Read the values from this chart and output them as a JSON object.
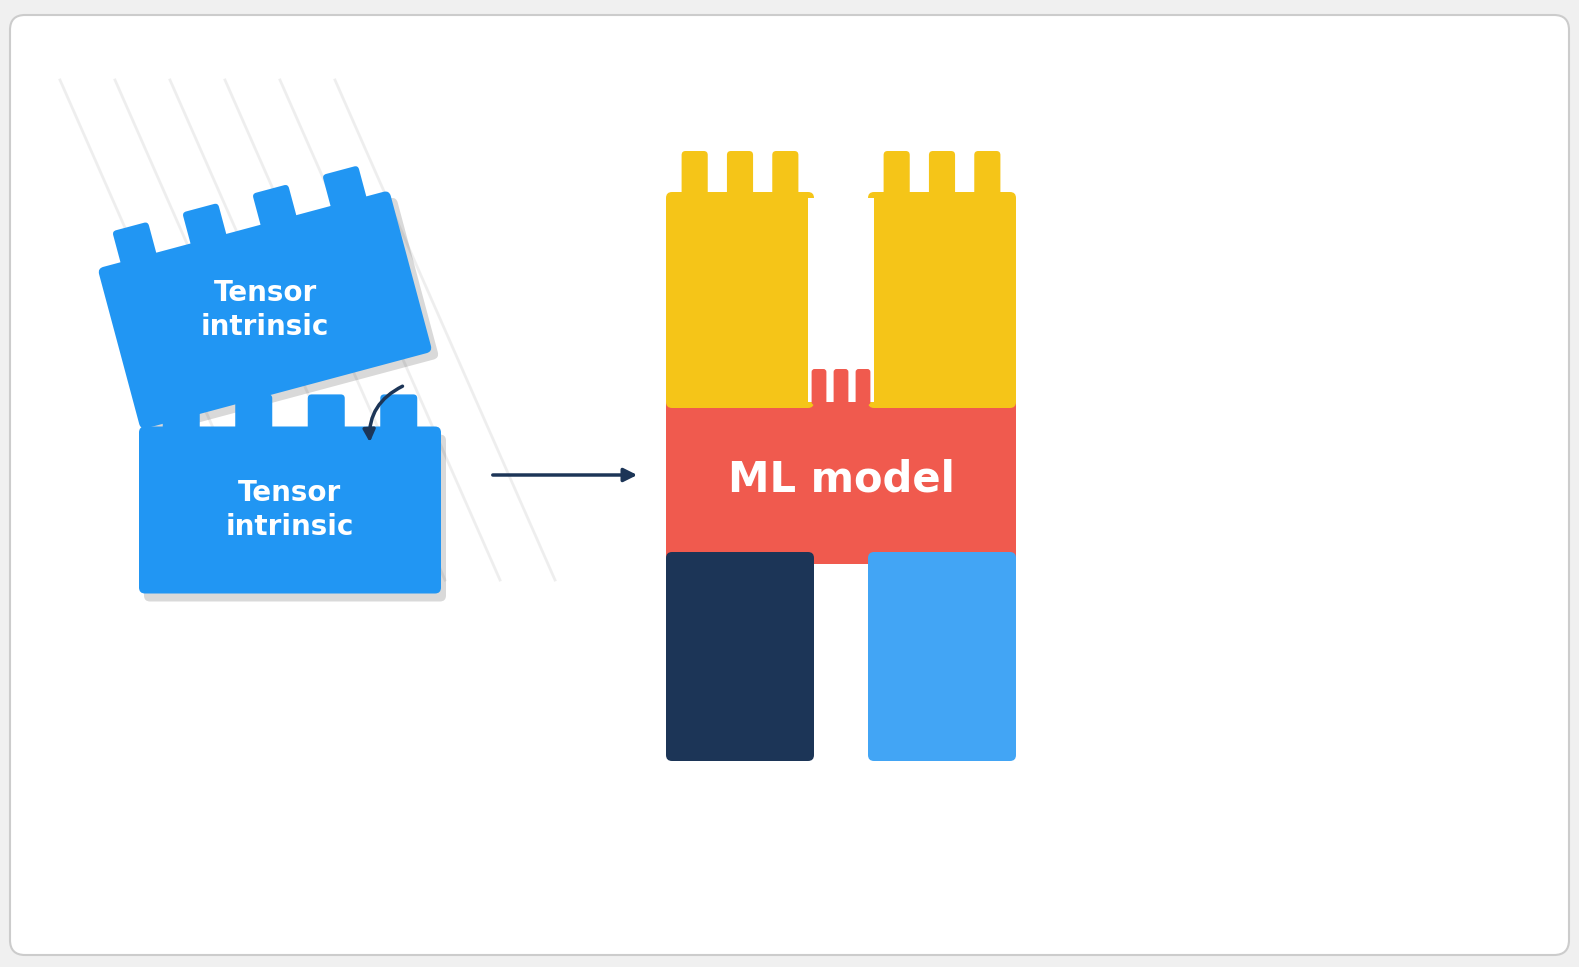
{
  "bg_color": "#f0f0f0",
  "panel_color": "#ffffff",
  "blue_lego": "#2196F3",
  "yellow_lego": "#F5C518",
  "red_lego": "#F05A4E",
  "navy_lego": "#1C3557",
  "light_blue_lego": "#42A5F5",
  "arrow_color": "#1C3557",
  "text_color": "#ffffff",
  "tensor_label": "Tensor\nintrinsic",
  "ml_label": "ML model",
  "fig_width": 15.79,
  "fig_height": 9.67
}
